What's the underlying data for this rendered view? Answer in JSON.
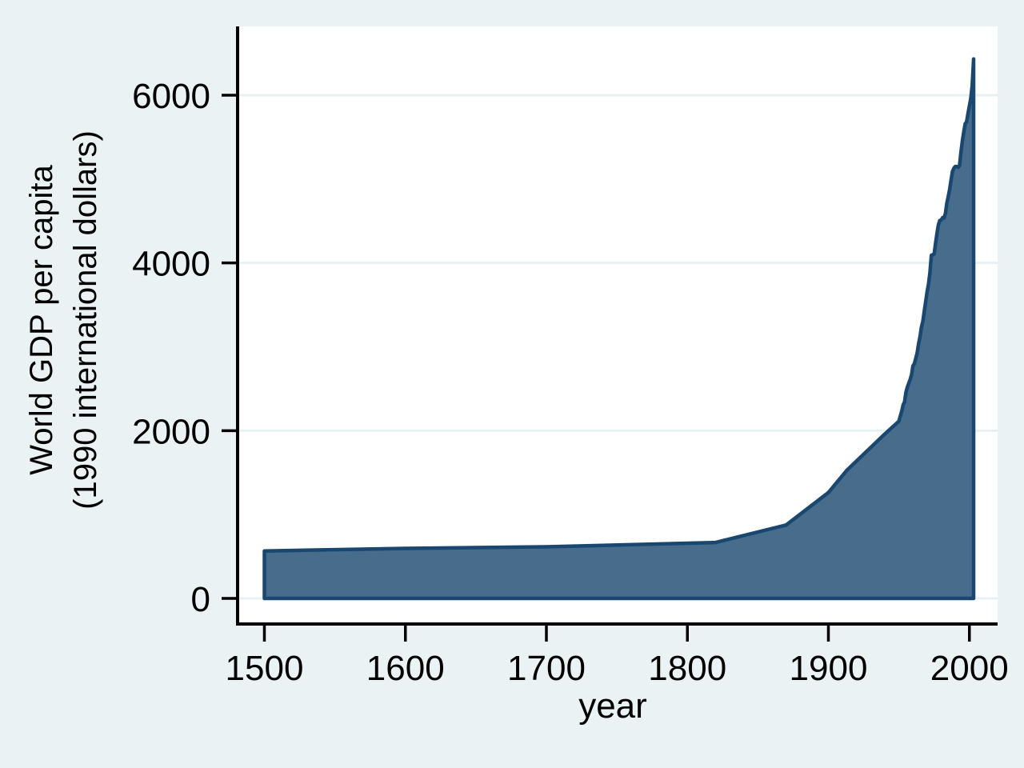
{
  "chart_data": {
    "type": "area",
    "title": "",
    "xlabel": "year",
    "ylabel_lines": [
      "World GDP per capita",
      "(1990 international dollars)"
    ],
    "series": [
      {
        "name": "World GDP per capita (1990 international dollars)",
        "points": [
          [
            1500,
            566
          ],
          [
            1600,
            596
          ],
          [
            1700,
            615
          ],
          [
            1820,
            667
          ],
          [
            1870,
            875
          ],
          [
            1900,
            1262
          ],
          [
            1913,
            1526
          ],
          [
            1940,
            1960
          ],
          [
            1950,
            2113
          ],
          [
            1951,
            2175
          ],
          [
            1952,
            2230
          ],
          [
            1953,
            2305
          ],
          [
            1954,
            2345
          ],
          [
            1955,
            2455
          ],
          [
            1956,
            2520
          ],
          [
            1957,
            2565
          ],
          [
            1958,
            2610
          ],
          [
            1959,
            2670
          ],
          [
            1960,
            2773
          ],
          [
            1961,
            2800
          ],
          [
            1962,
            2865
          ],
          [
            1963,
            2930
          ],
          [
            1964,
            3040
          ],
          [
            1965,
            3125
          ],
          [
            1966,
            3235
          ],
          [
            1967,
            3305
          ],
          [
            1968,
            3420
          ],
          [
            1969,
            3540
          ],
          [
            1970,
            3655
          ],
          [
            1971,
            3745
          ],
          [
            1972,
            3880
          ],
          [
            1973,
            4091
          ],
          [
            1974,
            4098
          ],
          [
            1975,
            4105
          ],
          [
            1976,
            4230
          ],
          [
            1977,
            4350
          ],
          [
            1978,
            4455
          ],
          [
            1979,
            4505
          ],
          [
            1980,
            4512
          ],
          [
            1981,
            4540
          ],
          [
            1982,
            4537
          ],
          [
            1983,
            4590
          ],
          [
            1984,
            4710
          ],
          [
            1985,
            4790
          ],
          [
            1986,
            4880
          ],
          [
            1987,
            4985
          ],
          [
            1988,
            5090
          ],
          [
            1989,
            5130
          ],
          [
            1990,
            5150
          ],
          [
            1991,
            5150
          ],
          [
            1992,
            5140
          ],
          [
            1993,
            5160
          ],
          [
            1994,
            5320
          ],
          [
            1995,
            5450
          ],
          [
            1996,
            5560
          ],
          [
            1997,
            5660
          ],
          [
            1998,
            5680
          ],
          [
            1999,
            5780
          ],
          [
            2000,
            5870
          ],
          [
            2001,
            5960
          ],
          [
            2002,
            6120
          ],
          [
            2003,
            6432
          ]
        ]
      }
    ],
    "x_ticks": [
      1500,
      1600,
      1700,
      1800,
      1900,
      2000
    ],
    "y_ticks": [
      0,
      2000,
      4000,
      6000
    ],
    "xlim": [
      1481,
      2020
    ],
    "ylim": [
      -305,
      6820
    ],
    "grid": "horizontal",
    "legend": "none",
    "colors": {
      "background": "#eaf2f3",
      "plot_background": "#ffffff",
      "gridline": "#e7f0f2",
      "area_fill": "#486c8c",
      "area_outline": "#1a476f",
      "axis": "#000000",
      "text": "#000000"
    }
  }
}
